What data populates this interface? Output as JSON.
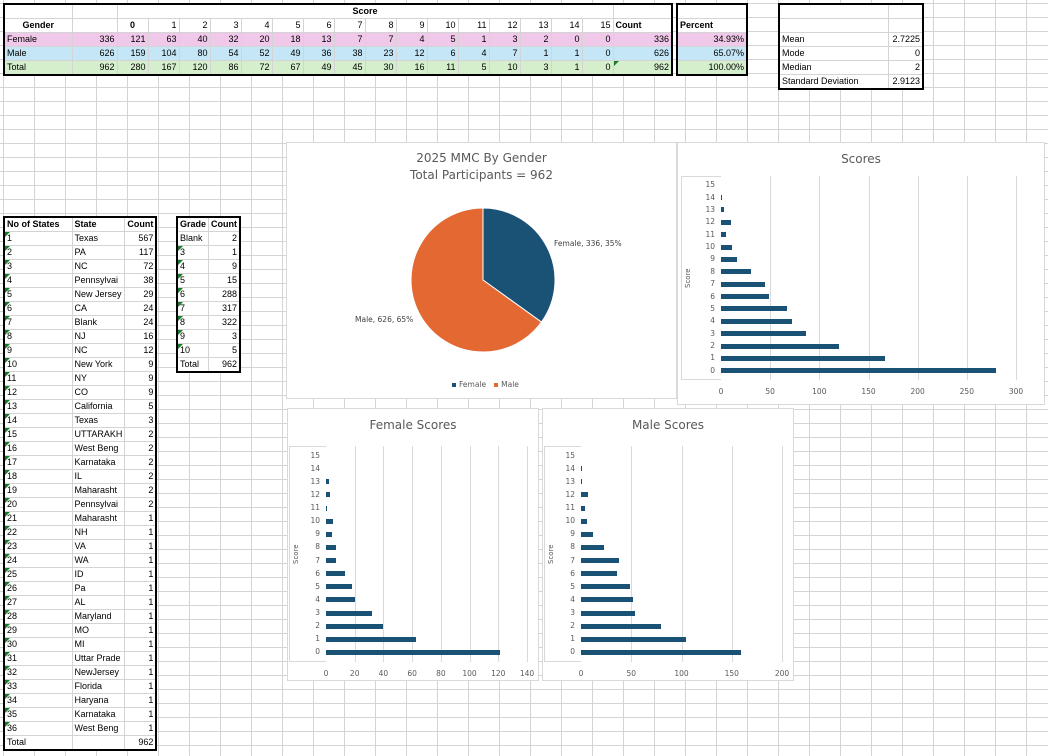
{
  "gender_table": {
    "score_header": "Score",
    "gender_header": "Gender",
    "score_columns": [
      "0",
      "1",
      "2",
      "3",
      "4",
      "5",
      "6",
      "7",
      "8",
      "9",
      "10",
      "11",
      "12",
      "13",
      "14",
      "15"
    ],
    "count_header": "Count",
    "percent_header": "Percent",
    "rows": [
      {
        "label": "Female",
        "total": "336",
        "scores": [
          "121",
          "63",
          "40",
          "32",
          "20",
          "18",
          "13",
          "7",
          "7",
          "4",
          "5",
          "1",
          "3",
          "2",
          "0",
          "0"
        ],
        "count": "336",
        "percent": "34.93%"
      },
      {
        "label": "Male",
        "total": "626",
        "scores": [
          "159",
          "104",
          "80",
          "54",
          "52",
          "49",
          "36",
          "38",
          "23",
          "12",
          "6",
          "4",
          "7",
          "1",
          "1",
          "0"
        ],
        "count": "626",
        "percent": "65.07%"
      },
      {
        "label": "Total",
        "total": "962",
        "scores": [
          "280",
          "167",
          "120",
          "86",
          "72",
          "67",
          "49",
          "45",
          "30",
          "16",
          "11",
          "5",
          "10",
          "3",
          "1",
          "0"
        ],
        "count": "962",
        "percent": "100.00%"
      }
    ]
  },
  "stats_table": {
    "rows": [
      {
        "label": "Mean",
        "value": "2.7225"
      },
      {
        "label": "Mode",
        "value": "0"
      },
      {
        "label": "Median",
        "value": "2"
      },
      {
        "label": "Standard Deviation",
        "value": "2.9123"
      }
    ]
  },
  "states_table": {
    "headers": [
      "No of States",
      "State",
      "Count"
    ],
    "rows": [
      [
        "1",
        "Texas",
        "567"
      ],
      [
        "2",
        "PA",
        "117"
      ],
      [
        "3",
        "NC",
        "72"
      ],
      [
        "4",
        "Pennsylvai",
        "38"
      ],
      [
        "5",
        "New Jersey",
        "29"
      ],
      [
        "6",
        "CA",
        "24"
      ],
      [
        "7",
        "Blank",
        "24"
      ],
      [
        "8",
        "NJ",
        "16"
      ],
      [
        "9",
        "NC",
        "12"
      ],
      [
        "10",
        "New York",
        "9"
      ],
      [
        "11",
        "NY",
        "9"
      ],
      [
        "12",
        "CO",
        "9"
      ],
      [
        "13",
        "California",
        "5"
      ],
      [
        "14",
        "Texas",
        "3"
      ],
      [
        "15",
        "UTTARAKH",
        "2"
      ],
      [
        "16",
        "West Beng",
        "2"
      ],
      [
        "17",
        "Karnataka",
        "2"
      ],
      [
        "18",
        "IL",
        "2"
      ],
      [
        "19",
        "Maharasht",
        "2"
      ],
      [
        "20",
        "Pennsylvai",
        "2"
      ],
      [
        "21",
        "Maharasht",
        "1"
      ],
      [
        "22",
        "NH",
        "1"
      ],
      [
        "23",
        "VA",
        "1"
      ],
      [
        "24",
        "WA",
        "1"
      ],
      [
        "25",
        "ID",
        "1"
      ],
      [
        "26",
        "Pa",
        "1"
      ],
      [
        "27",
        "AL",
        "1"
      ],
      [
        "28",
        "Maryland",
        "1"
      ],
      [
        "29",
        "MO",
        "1"
      ],
      [
        "30",
        "MI",
        "1"
      ],
      [
        "31",
        "Uttar Prade",
        "1"
      ],
      [
        "32",
        "NewJersey",
        "1"
      ],
      [
        "33",
        "Florida",
        "1"
      ],
      [
        "34",
        "Haryana",
        "1"
      ],
      [
        "35",
        "Karnataka",
        "1"
      ],
      [
        "36",
        "West Beng",
        "1"
      ]
    ],
    "total_label": "Total",
    "total_value": "962"
  },
  "grade_table": {
    "headers": [
      "Grade",
      "Count"
    ],
    "rows": [
      [
        "Blank",
        "2"
      ],
      [
        "3",
        "1"
      ],
      [
        "4",
        "9"
      ],
      [
        "5",
        "15"
      ],
      [
        "6",
        "288"
      ],
      [
        "7",
        "317"
      ],
      [
        "8",
        "322"
      ],
      [
        "9",
        "3"
      ],
      [
        "10",
        "5"
      ]
    ],
    "total_label": "Total",
    "total_value": "962"
  },
  "colors": {
    "female": "#1a5276",
    "male": "#e46832",
    "bar": "#1a5276"
  },
  "chart_data": [
    {
      "type": "pie",
      "title": "2025 MMC By Gender",
      "subtitle": "Total Participants = 962",
      "categories": [
        "Female",
        "Male"
      ],
      "values": [
        336,
        626
      ],
      "percents": [
        35,
        65
      ],
      "data_labels": [
        "Female, 336, 35%",
        "Male, 626, 65%"
      ],
      "legend": [
        "Female",
        "Male"
      ],
      "legend_position": "bottom"
    },
    {
      "type": "bar",
      "orientation": "horizontal",
      "title": "Scores",
      "ylabel": "Score",
      "categories": [
        "0",
        "1",
        "2",
        "3",
        "4",
        "5",
        "6",
        "7",
        "8",
        "9",
        "10",
        "11",
        "12",
        "13",
        "14",
        "15"
      ],
      "values": [
        280,
        167,
        120,
        86,
        72,
        67,
        49,
        45,
        30,
        16,
        11,
        5,
        10,
        3,
        1,
        0
      ],
      "xlim": [
        0,
        300
      ],
      "xticks": [
        "0",
        "50",
        "100",
        "150",
        "200",
        "250",
        "300"
      ],
      "grid": true
    },
    {
      "type": "bar",
      "orientation": "horizontal",
      "title": "Female Scores",
      "ylabel": "Score",
      "categories": [
        "0",
        "1",
        "2",
        "3",
        "4",
        "5",
        "6",
        "7",
        "8",
        "9",
        "10",
        "11",
        "12",
        "13",
        "14",
        "15"
      ],
      "values": [
        121,
        63,
        40,
        32,
        20,
        18,
        13,
        7,
        7,
        4,
        5,
        1,
        3,
        2,
        0,
        0
      ],
      "xlim": [
        0,
        140
      ],
      "xticks": [
        "0",
        "20",
        "40",
        "60",
        "80",
        "100",
        "120",
        "140"
      ],
      "grid": true
    },
    {
      "type": "bar",
      "orientation": "horizontal",
      "title": "Male Scores",
      "ylabel": "Score",
      "categories": [
        "0",
        "1",
        "2",
        "3",
        "4",
        "5",
        "6",
        "7",
        "8",
        "9",
        "10",
        "11",
        "12",
        "13",
        "14",
        "15"
      ],
      "values": [
        159,
        104,
        80,
        54,
        52,
        49,
        36,
        38,
        23,
        12,
        6,
        4,
        7,
        1,
        1,
        0
      ],
      "xlim": [
        0,
        200
      ],
      "xticks": [
        "0",
        "50",
        "100",
        "150",
        "200"
      ],
      "grid": true
    }
  ]
}
